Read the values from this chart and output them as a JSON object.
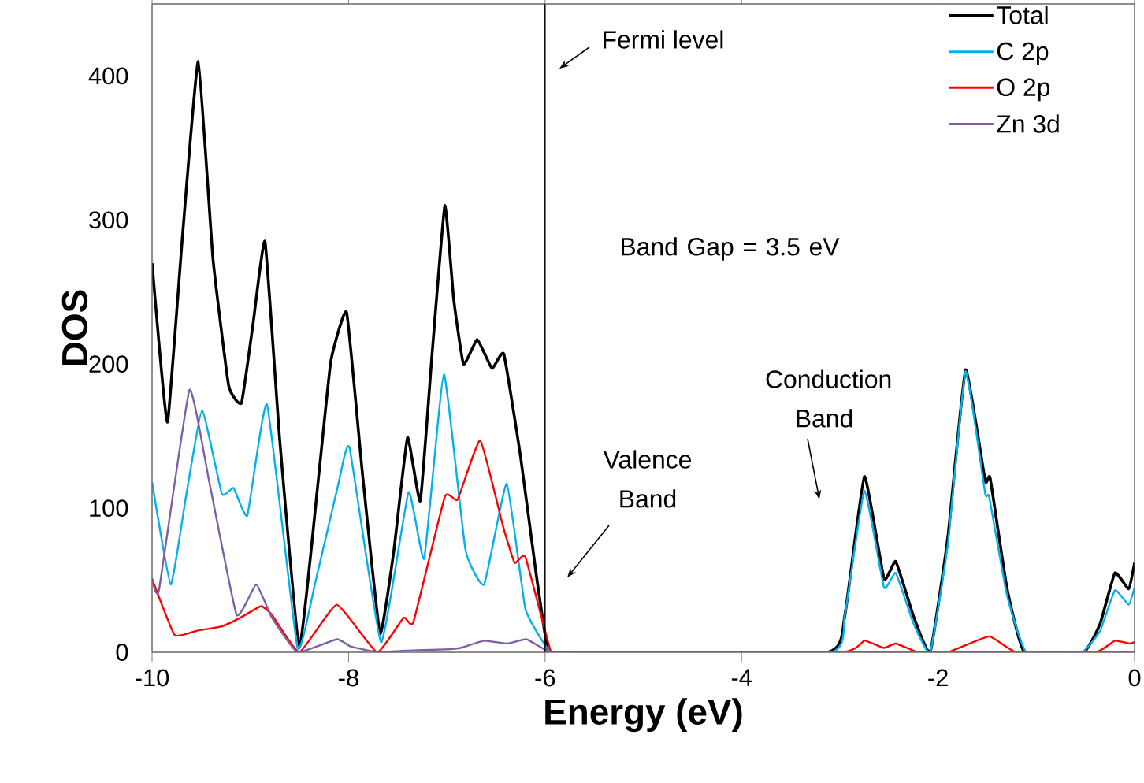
{
  "chart_data": {
    "type": "line",
    "xlabel": "Energy (eV)",
    "ylabel": "DOS",
    "xlim": [
      -10,
      0
    ],
    "ylim": [
      0,
      450
    ],
    "xticks": [
      -10,
      -8,
      -6,
      -4,
      -2,
      0
    ],
    "yticks": [
      0,
      100,
      200,
      300,
      400
    ],
    "grid": false,
    "legend": "top right",
    "line_style": "solid",
    "series": [
      {
        "name": "Total",
        "color": "#000000",
        "x": [
          -10,
          -9.92,
          -9.84,
          -9.69,
          -9.53,
          -9.38,
          -9.22,
          -9.09,
          -8.97,
          -8.85,
          -8.7,
          -8.5,
          -8.3,
          -8.18,
          -8.02,
          -7.86,
          -7.68,
          -7.54,
          -7.4,
          -7.27,
          -7.15,
          -7.02,
          -6.93,
          -6.83,
          -6.69,
          -6.54,
          -6.42,
          -6.25,
          -6.09,
          -5.97,
          -5.85,
          -3.13,
          -2.95,
          -2.75,
          -2.55,
          -2.43,
          -2.25,
          -2.08,
          -1.9,
          -1.72,
          -1.52,
          -1.47,
          -1.3,
          -1.12,
          -0.52,
          -0.35,
          -0.2,
          -0.06,
          0
        ],
        "values": [
          270,
          207,
          160,
          289,
          410,
          273,
          185,
          173,
          229,
          285,
          147,
          4,
          125,
          202,
          236,
          125,
          13,
          70,
          149,
          105,
          207,
          310,
          245,
          200,
          217,
          197,
          207,
          136,
          54,
          1,
          0,
          0,
          25,
          122,
          51,
          63,
          25,
          0,
          80,
          196,
          119,
          121,
          45,
          0,
          0,
          20,
          55,
          44,
          62
        ]
      },
      {
        "name": "C 2p",
        "color": "#00b0f0",
        "x": [
          -10,
          -9.81,
          -9.65,
          -9.49,
          -9.29,
          -9.17,
          -9.03,
          -8.83,
          -8.52,
          -8.34,
          -8.1,
          -7.99,
          -7.67,
          -7.39,
          -7.23,
          -7.03,
          -6.81,
          -6.62,
          -6.39,
          -6.2,
          -5.97,
          -5.85,
          -3.1,
          -2.95,
          -2.75,
          -2.55,
          -2.43,
          -2.25,
          -2.08,
          -1.9,
          -1.72,
          -1.52,
          -1.48,
          -1.3,
          -1.1,
          -0.54,
          -0.35,
          -0.2,
          -0.06,
          0
        ],
        "values": [
          118,
          47,
          110,
          168,
          110,
          114,
          95,
          172,
          3,
          48,
          118,
          142,
          7,
          111,
          65,
          193,
          71,
          47,
          117,
          30,
          2,
          0,
          0,
          25,
          112,
          45,
          55,
          20,
          0,
          75,
          195,
          110,
          108,
          40,
          0,
          0,
          15,
          43,
          33,
          45
        ]
      },
      {
        "name": "O 2p",
        "color": "#ff0000",
        "x": [
          -10,
          -9.77,
          -9.54,
          -9.29,
          -9.1,
          -8.89,
          -8.78,
          -8.5,
          -8.12,
          -7.71,
          -7.44,
          -7.34,
          -7.02,
          -6.89,
          -6.66,
          -6.43,
          -6.31,
          -6.2,
          -5.94,
          -5.85,
          -3.0,
          -2.75,
          -2.55,
          -2.43,
          -2.2,
          -1.9,
          -1.48,
          -1.2,
          -0.4,
          -0.2,
          -0.05,
          0
        ],
        "values": [
          51,
          12,
          15,
          18,
          24,
          32,
          26,
          0,
          33,
          0,
          24,
          21,
          108,
          106,
          147,
          88,
          62,
          66,
          0,
          0,
          0,
          8,
          3,
          6,
          0,
          0,
          11,
          0,
          0,
          8,
          6,
          7
        ]
      },
      {
        "name": "Zn 3d",
        "color": "#7f5fa3",
        "x": [
          -10,
          -9.93,
          -9.62,
          -9.42,
          -9.14,
          -8.94,
          -8.78,
          -8.52,
          -8.12,
          -7.98,
          -7.7,
          -7.45,
          -7.02,
          -6.86,
          -6.62,
          -6.38,
          -6.19,
          -5.95,
          -5.7,
          -5,
          -4,
          -3,
          -2,
          -1,
          0
        ],
        "values": [
          51,
          43,
          182,
          119,
          26,
          47,
          24,
          0,
          9,
          4,
          0,
          1,
          2,
          3,
          8,
          6,
          9,
          0,
          0,
          0,
          0,
          0,
          0,
          0,
          0
        ]
      }
    ],
    "ref_lines": [
      {
        "axis": "x",
        "value": -6,
        "label": "Fermi level",
        "color": "#000000"
      }
    ],
    "annotations": [
      "Band Gap = 3.5 eV",
      "Valence Band",
      "Conduction Band"
    ]
  }
}
